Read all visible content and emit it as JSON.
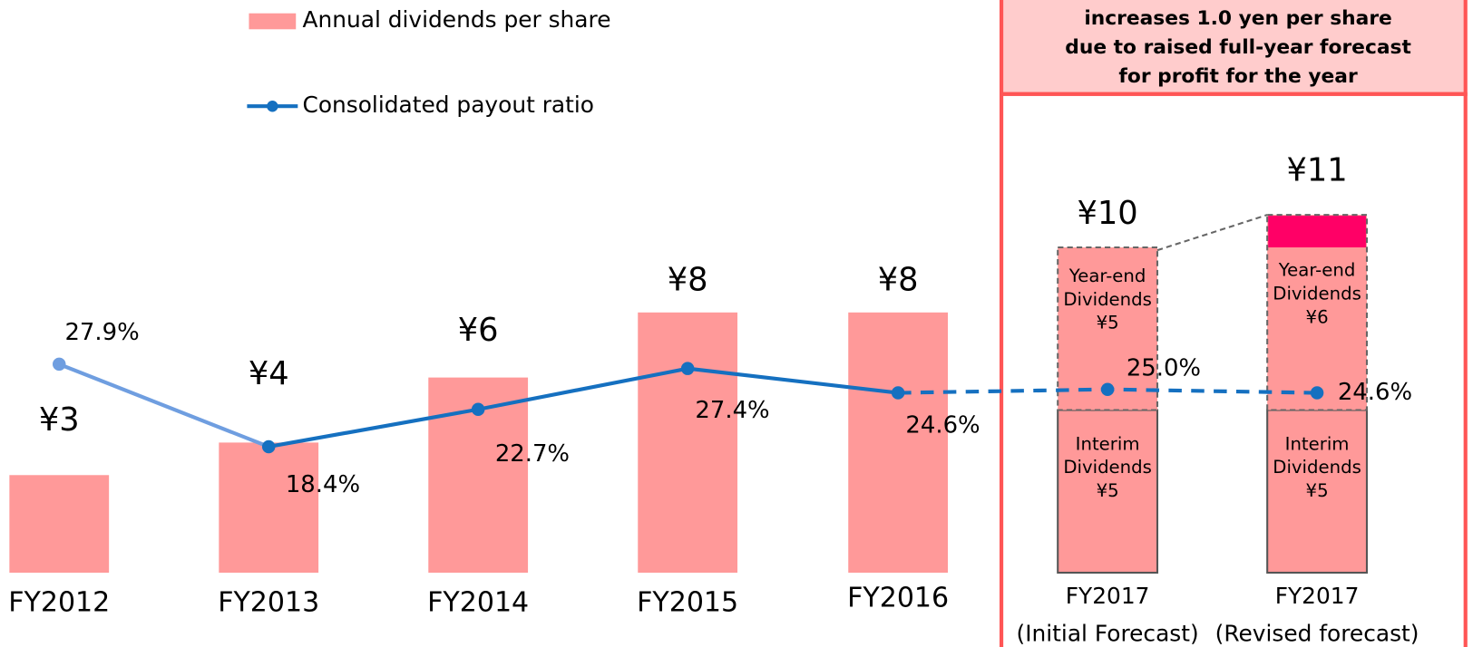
{
  "chart_data": {
    "type": "combo",
    "annotation": [
      "increases 1.0 yen per share",
      "due to raised full-year forecast",
      "for profit for the year"
    ],
    "categories": [
      "FY2012",
      "FY2013",
      "FY2014",
      "FY2015",
      "FY2016",
      [
        "FY2017",
        "(Initial Forecast)"
      ],
      [
        "FY2017",
        "(Revised forecast)"
      ]
    ],
    "ylim": [
      0,
      17.6
    ],
    "y2lim": [
      3.9,
      69.8
    ],
    "series": [
      {
        "name": "Annual dividends per share",
        "type": "bar",
        "color": "#ff9999",
        "values": [
          3,
          4,
          6,
          8,
          8,
          10,
          11
        ],
        "value_labels": [
          "¥3",
          "¥4",
          "¥6",
          "¥8",
          "¥8",
          "¥10",
          "¥11"
        ]
      },
      {
        "name": "Interim Dividends",
        "type": "stack",
        "color": "#ff9999",
        "values": [
          null,
          null,
          null,
          null,
          null,
          5,
          5
        ],
        "value_labels": [
          null,
          null,
          null,
          null,
          null,
          "¥5",
          "¥5"
        ]
      },
      {
        "name": "Year-end Dividends",
        "type": "stack",
        "color": "#ff9999",
        "increase_color": "#ff0066",
        "values": [
          null,
          null,
          null,
          null,
          null,
          5,
          6
        ],
        "value_labels": [
          null,
          null,
          null,
          null,
          null,
          "¥5",
          "¥6"
        ]
      },
      {
        "name": "Consolidated payout ratio",
        "type": "line",
        "axis": "y2",
        "color": "#1570c0",
        "values": [
          27.9,
          18.4,
          22.7,
          27.4,
          24.6,
          25.0,
          24.6
        ],
        "value_labels": [
          "27.9%",
          "18.4%",
          "22.7%",
          "27.4%",
          "24.6%",
          "25.0%",
          "24.6%"
        ]
      }
    ]
  }
}
